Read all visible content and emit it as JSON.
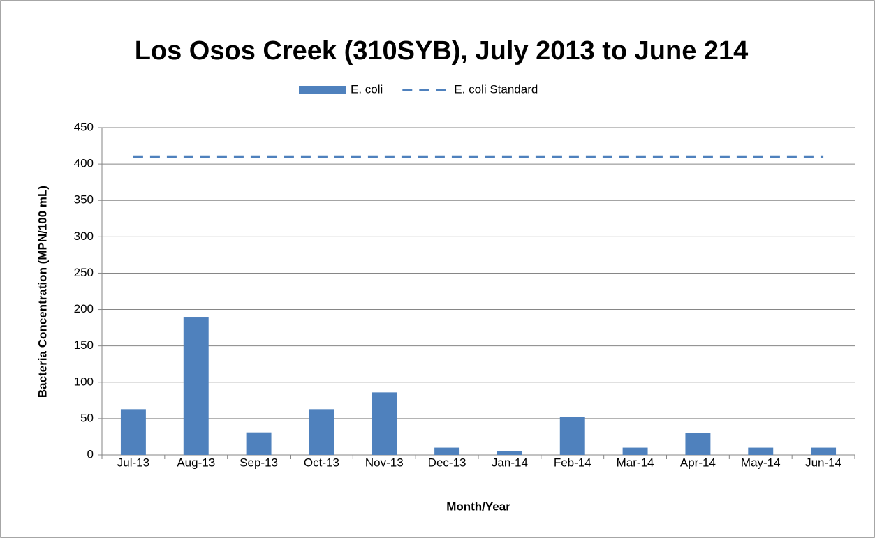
{
  "chart_data": {
    "type": "bar",
    "title": "Los Osos Creek (310SYB), July 2013 to June 214",
    "x_label": "Month/Year",
    "y_label": "Bacteria Concentration (MPN/100 mL)",
    "categories": [
      "Jul-13",
      "Aug-13",
      "Sep-13",
      "Oct-13",
      "Nov-13",
      "Dec-13",
      "Jan-14",
      "Feb-14",
      "Mar-14",
      "Apr-14",
      "May-14",
      "Jun-14"
    ],
    "series": [
      {
        "name": "E. coli",
        "color": "#4f81bd",
        "type": "bar",
        "values": [
          63,
          189,
          31,
          63,
          86,
          10,
          5,
          52,
          10,
          30,
          10,
          10
        ]
      },
      {
        "name": "E. coli Standard",
        "color": "#4f81bd",
        "type": "line",
        "dashed": true,
        "values": [
          410,
          410,
          410,
          410,
          410,
          410,
          410,
          410,
          410,
          410,
          410,
          410
        ]
      }
    ],
    "ylim": [
      0,
      450
    ],
    "yticks": [
      0,
      50,
      100,
      150,
      200,
      250,
      300,
      350,
      400,
      450
    ],
    "grid": true,
    "legend": "top"
  }
}
